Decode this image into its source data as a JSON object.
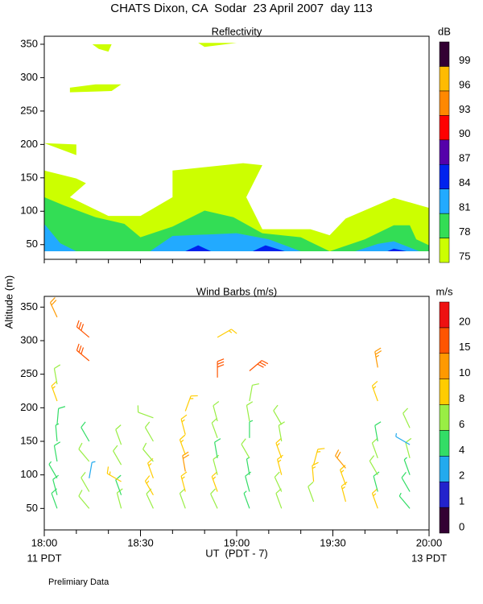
{
  "title": "CHATS Dixon, CA  Sodar  23 April 2007  day 113",
  "y_label": "Altitude (m)",
  "note": "Prelimiary Data",
  "chart_data": [
    {
      "type": "contour",
      "title": "Reflectivity",
      "xlim": [
        0,
        120
      ],
      "xticks": [
        0,
        10,
        20,
        30,
        40,
        50,
        60,
        70,
        80,
        90,
        100,
        110,
        120
      ],
      "ylim": [
        28,
        362
      ],
      "yticks": [
        50,
        100,
        150,
        200,
        250,
        300,
        350
      ],
      "colorbar": {
        "label": "dB",
        "levels": [
          75,
          78,
          81,
          84,
          87,
          90,
          93,
          96,
          99
        ],
        "colors": [
          "#ccff00",
          "#33dd55",
          "#22aaff",
          "#0022ee",
          "#5500aa",
          "#ff0000",
          "#ff8800",
          "#ffbb00",
          "#330033"
        ]
      },
      "regions": [
        {
          "level": 75,
          "x": [
            0,
            10,
            13,
            8,
            20,
            30,
            40,
            40,
            52,
            62,
            68,
            63,
            68,
            83,
            89,
            94,
            109,
            120,
            120,
            0
          ],
          "y": [
            161,
            149,
            142,
            121,
            93,
            93,
            121,
            161,
            167,
            172,
            169,
            121,
            73,
            73,
            64,
            89,
            120,
            105,
            40,
            40
          ]
        },
        {
          "level": 75,
          "x": [
            0,
            10,
            10
          ],
          "y": [
            202,
            200,
            184
          ]
        },
        {
          "level": 75,
          "x": [
            8,
            16,
            24,
            21,
            8
          ],
          "y": [
            285,
            290,
            290,
            280,
            278
          ]
        },
        {
          "level": 75,
          "x": [
            15,
            21,
            20,
            17
          ],
          "y": [
            350,
            350,
            339,
            343
          ]
        },
        {
          "level": 75,
          "x": [
            48,
            60,
            50
          ],
          "y": [
            352,
            352,
            346
          ]
        },
        {
          "level": 78,
          "x": [
            0,
            6,
            16,
            25,
            30,
            40,
            50,
            59,
            68,
            80,
            89,
            100,
            109,
            114,
            116,
            120,
            120,
            0
          ],
          "y": [
            121,
            109,
            91,
            81,
            61,
            77,
            101,
            91,
            67,
            61,
            40,
            58,
            79,
            79,
            58,
            49,
            40,
            40
          ]
        },
        {
          "level": 81,
          "x": [
            0,
            5,
            10,
            33,
            40,
            60,
            70,
            80,
            0
          ],
          "y": [
            81,
            52,
            40,
            40,
            63,
            67,
            58,
            40,
            40
          ]
        },
        {
          "level": 81,
          "x": [
            97,
            104,
            109,
            117
          ],
          "y": [
            40,
            51,
            55,
            40
          ]
        },
        {
          "level": 84,
          "x": [
            44,
            48,
            52
          ],
          "y": [
            40,
            49,
            40
          ]
        },
        {
          "level": 84,
          "x": [
            65,
            69,
            75
          ],
          "y": [
            40,
            49,
            40
          ]
        },
        {
          "level": 84,
          "x": [
            107,
            109,
            113
          ],
          "y": [
            40,
            44,
            40
          ]
        }
      ]
    },
    {
      "type": "barbs",
      "title": "Wind Barbs (m/s)",
      "x_label": "UT  (PDT - 7)",
      "x_end_labels": [
        "11 PDT",
        "13 PDT"
      ],
      "xlim": [
        0,
        120
      ],
      "xticks": [
        {
          "value": 0,
          "label": "18:00"
        },
        {
          "value": 30,
          "label": "18:30"
        },
        {
          "value": 60,
          "label": "19:00"
        },
        {
          "value": 90,
          "label": "19:30"
        },
        {
          "value": 120,
          "label": "20:00"
        }
      ],
      "xminorticks": [
        10,
        20,
        40,
        50,
        70,
        80,
        100,
        110
      ],
      "ylim": [
        18,
        366
      ],
      "yticks": [
        50,
        100,
        150,
        200,
        250,
        300,
        350
      ],
      "colorbar": {
        "label": "m/s",
        "levels": [
          0,
          1,
          2,
          4,
          6,
          8,
          10,
          15,
          20
        ],
        "colors": [
          "#330033",
          "#2222cc",
          "#22aaee",
          "#33dd66",
          "#99ee44",
          "#ffcc00",
          "#ff9900",
          "#ff5500",
          "#ee1111"
        ]
      },
      "columns": [
        {
          "time": 4,
          "altitudes": [
            50,
            70,
            95,
            120,
            150,
            175,
            210,
            235,
            335
          ],
          "speeds": [
            5,
            5,
            4,
            5,
            4,
            5,
            9,
            7,
            12
          ],
          "directions": [
            340,
            345,
            330,
            350,
            355,
            5,
            340,
            350,
            335
          ]
        },
        {
          "time": 14,
          "altitudes": [
            50,
            75,
            95,
            120,
            150,
            270,
            305
          ],
          "speeds": [
            6,
            6,
            3,
            6,
            5,
            17,
            17
          ],
          "directions": [
            320,
            330,
            10,
            320,
            330,
            310,
            310
          ]
        },
        {
          "time": 24,
          "altitudes": [
            50,
            70,
            90,
            115,
            145
          ],
          "speeds": [
            6,
            5,
            8,
            6,
            6
          ],
          "directions": [
            345,
            340,
            300,
            330,
            340
          ]
        },
        {
          "time": 34,
          "altitudes": [
            50,
            70,
            95,
            120,
            150,
            185
          ],
          "speeds": [
            7,
            9,
            8,
            6,
            7,
            7
          ],
          "directions": [
            335,
            330,
            340,
            320,
            330,
            290
          ]
        },
        {
          "time": 44,
          "altitudes": [
            50,
            75,
            105,
            130,
            160,
            195
          ],
          "speeds": [
            7,
            9,
            10,
            9,
            8,
            9
          ],
          "directions": [
            340,
            345,
            350,
            340,
            345,
            20
          ]
        },
        {
          "time": 54,
          "altitudes": [
            50,
            75,
            100,
            125,
            155,
            180,
            245,
            305
          ],
          "speeds": [
            6,
            8,
            7,
            5,
            6,
            7,
            16,
            9
          ],
          "directions": [
            335,
            340,
            345,
            350,
            340,
            345,
            0,
            60
          ]
        },
        {
          "time": 64,
          "altitudes": [
            50,
            75,
            100,
            125,
            155,
            180,
            210,
            255
          ],
          "speeds": [
            4,
            5,
            4,
            6,
            4,
            6,
            7,
            16
          ],
          "directions": [
            340,
            345,
            350,
            330,
            0,
            350,
            10,
            50
          ]
        },
        {
          "time": 74,
          "altitudes": [
            50,
            75,
            100,
            125,
            150,
            175
          ],
          "speeds": [
            6,
            6,
            8,
            9,
            7,
            6
          ],
          "directions": [
            340,
            335,
            345,
            340,
            350,
            330
          ]
        },
        {
          "time": 84,
          "altitudes": [
            60,
            90,
            115
          ],
          "speeds": [
            7,
            8,
            9
          ],
          "directions": [
            340,
            355,
            15
          ]
        },
        {
          "time": 94,
          "altitudes": [
            60,
            85,
            110
          ],
          "speeds": [
            9,
            8,
            10
          ],
          "directions": [
            345,
            340,
            320
          ]
        },
        {
          "time": 104,
          "altitudes": [
            50,
            75,
            100,
            125,
            150,
            210,
            260
          ],
          "speeds": [
            9,
            5,
            6,
            6,
            5,
            9,
            14
          ],
          "directions": [
            340,
            345,
            330,
            340,
            350,
            340,
            350
          ]
        },
        {
          "time": 114,
          "altitudes": [
            50,
            75,
            100,
            125,
            145,
            170
          ],
          "speeds": [
            4,
            5,
            4,
            6,
            3,
            6
          ],
          "directions": [
            320,
            330,
            340,
            345,
            300,
            335
          ]
        }
      ]
    }
  ]
}
